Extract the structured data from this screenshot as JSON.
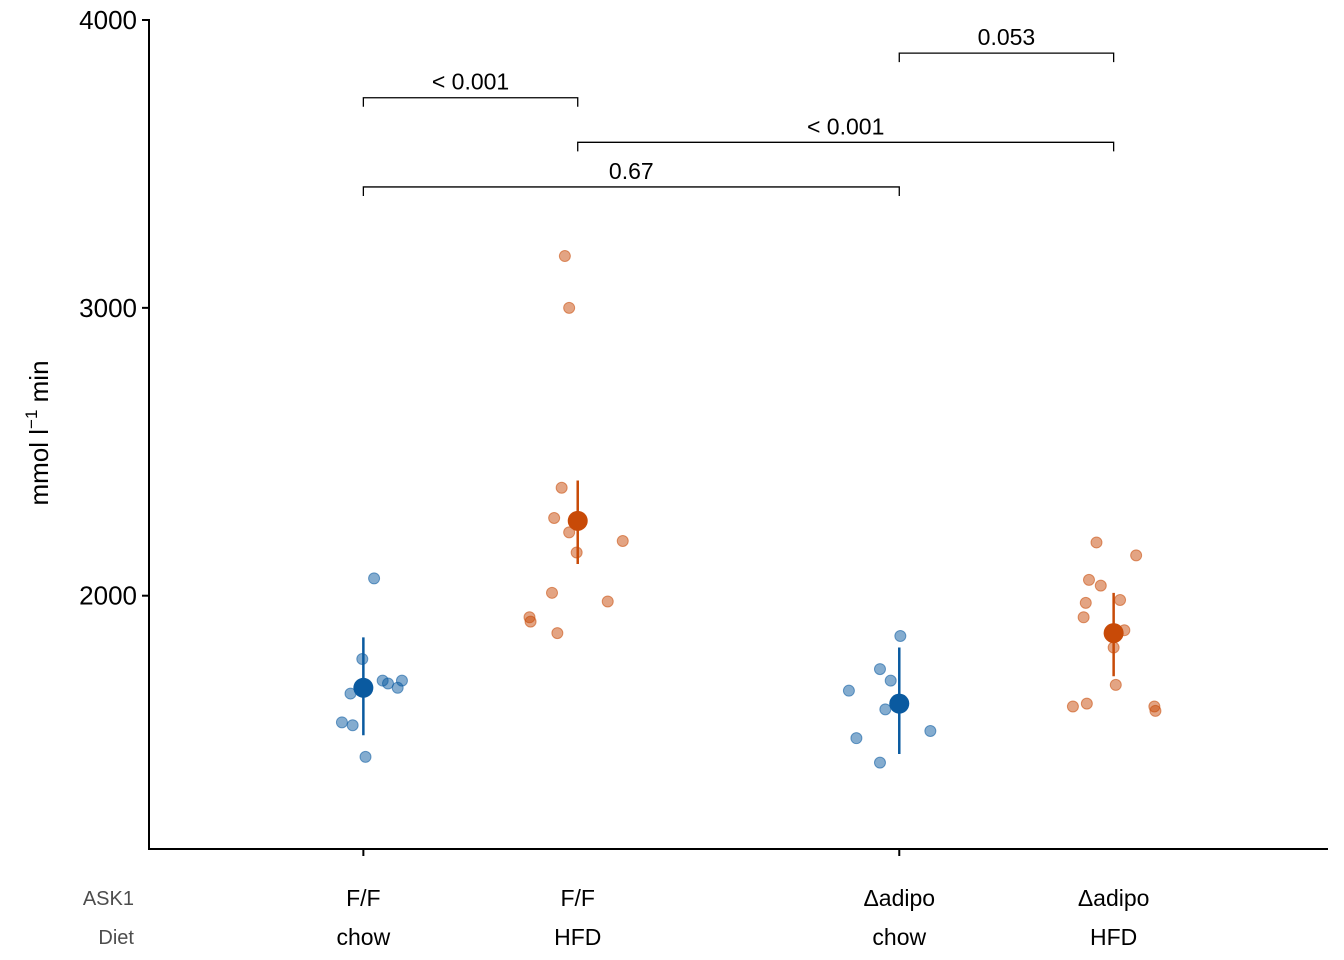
{
  "chart_data": {
    "type": "scatter",
    "subtype": "jittered dot plot with mean and error bars",
    "ylabel": {
      "main": "mmol l",
      "sup": "−1",
      "tail": " min"
    },
    "ylim": [
      1120,
      4000
    ],
    "yticks": [
      2000,
      3000,
      4000
    ],
    "xlim": [
      0.5,
      6.0
    ],
    "group_axis_ticks": [
      1.5,
      4.0
    ],
    "row_labels": [
      "ASK1",
      "Diet"
    ],
    "colors": {
      "chow": "#0a5aa0",
      "HFD": "#c84a07"
    },
    "groups": [
      {
        "name": "F/F chow",
        "ask1": "F/F",
        "diet": "chow",
        "x": 1.5,
        "color_key": "chow",
        "mean": 1680,
        "error_low": 1515,
        "error_high": 1855,
        "points": [
          {
            "dx": 0.05,
            "y": 2060
          },
          {
            "dx": -0.005,
            "y": 1780
          },
          {
            "dx": 0.09,
            "y": 1705
          },
          {
            "dx": 0.115,
            "y": 1695
          },
          {
            "dx": 0.18,
            "y": 1705
          },
          {
            "dx": 0.16,
            "y": 1680
          },
          {
            "dx": -0.06,
            "y": 1660
          },
          {
            "dx": -0.1,
            "y": 1560
          },
          {
            "dx": -0.05,
            "y": 1550
          },
          {
            "dx": 0.01,
            "y": 1440
          }
        ]
      },
      {
        "name": "F/F HFD",
        "ask1": "F/F",
        "diet": "HFD",
        "x": 2.5,
        "color_key": "HFD",
        "mean": 2260,
        "error_low": 2110,
        "error_high": 2400,
        "points": [
          {
            "dx": -0.06,
            "y": 3180
          },
          {
            "dx": -0.04,
            "y": 3000
          },
          {
            "dx": -0.075,
            "y": 2375
          },
          {
            "dx": -0.11,
            "y": 2270
          },
          {
            "dx": -0.04,
            "y": 2220
          },
          {
            "dx": 0.21,
            "y": 2190
          },
          {
            "dx": -0.005,
            "y": 2150
          },
          {
            "dx": -0.12,
            "y": 2010
          },
          {
            "dx": 0.14,
            "y": 1980
          },
          {
            "dx": -0.225,
            "y": 1925
          },
          {
            "dx": -0.22,
            "y": 1910
          },
          {
            "dx": -0.095,
            "y": 1870
          }
        ]
      },
      {
        "name": "Δadipo chow",
        "ask1": "Δadipo",
        "diet": "chow",
        "x": 4.0,
        "color_key": "chow",
        "mean": 1625,
        "error_low": 1450,
        "error_high": 1820,
        "points": [
          {
            "dx": 0.005,
            "y": 1860
          },
          {
            "dx": -0.09,
            "y": 1745
          },
          {
            "dx": -0.04,
            "y": 1705
          },
          {
            "dx": -0.235,
            "y": 1670
          },
          {
            "dx": -0.065,
            "y": 1605
          },
          {
            "dx": 0.145,
            "y": 1530
          },
          {
            "dx": -0.2,
            "y": 1505
          },
          {
            "dx": -0.09,
            "y": 1420
          }
        ]
      },
      {
        "name": "Δadipo HFD",
        "ask1": "Δadipo",
        "diet": "HFD",
        "x": 5.0,
        "color_key": "HFD",
        "mean": 1870,
        "error_low": 1720,
        "error_high": 2010,
        "points": [
          {
            "dx": -0.08,
            "y": 2185
          },
          {
            "dx": 0.105,
            "y": 2140
          },
          {
            "dx": -0.115,
            "y": 2055
          },
          {
            "dx": -0.06,
            "y": 2035
          },
          {
            "dx": 0.03,
            "y": 1985
          },
          {
            "dx": -0.13,
            "y": 1975
          },
          {
            "dx": -0.14,
            "y": 1925
          },
          {
            "dx": 0.05,
            "y": 1880
          },
          {
            "dx": 0.0,
            "y": 1820
          },
          {
            "dx": 0.01,
            "y": 1690
          },
          {
            "dx": -0.125,
            "y": 1625
          },
          {
            "dx": -0.19,
            "y": 1615
          },
          {
            "dx": 0.19,
            "y": 1615
          },
          {
            "dx": 0.195,
            "y": 1600
          }
        ]
      }
    ],
    "comparisons": [
      {
        "from": 1.5,
        "to": 2.5,
        "y": 3730,
        "label": "< 0.001"
      },
      {
        "from": 4.0,
        "to": 5.0,
        "y": 3885,
        "label": "0.053"
      },
      {
        "from": 2.5,
        "to": 5.0,
        "y": 3575,
        "label": "< 0.001"
      },
      {
        "from": 1.5,
        "to": 4.0,
        "y": 3420,
        "label": "0.67"
      }
    ]
  }
}
